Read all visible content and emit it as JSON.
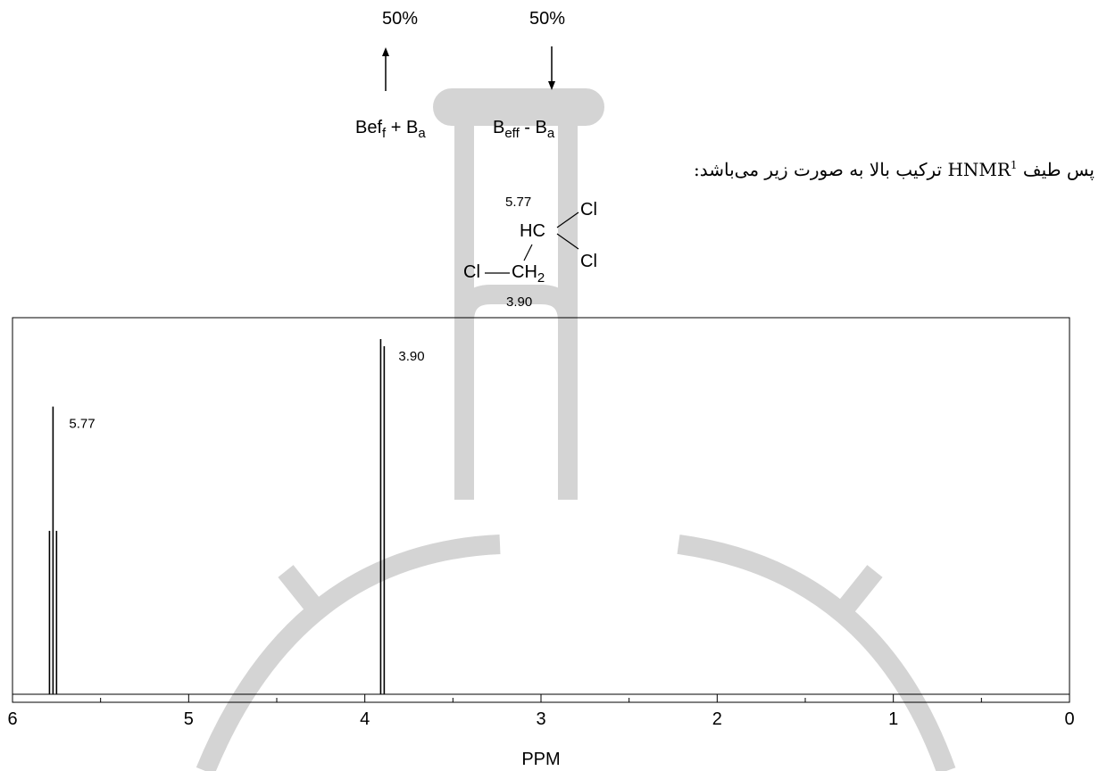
{
  "field_diagram": {
    "left": {
      "percent": "50%",
      "arrow": "up",
      "label_base": "Bef",
      "label_sub": "f",
      "label_mid": " + B",
      "label_sub2": "a"
    },
    "right": {
      "percent": "50%",
      "arrow": "down",
      "label_base": "B",
      "label_sub": "eff",
      "label_mid": " - B",
      "label_sub2": "a"
    }
  },
  "caption": {
    "before": "پس طیف ",
    "acronym": "HNMR",
    "sup": "1",
    "after": " ترکیب بالا به صورت زیر می‌باشد:"
  },
  "molecule": {
    "shift_ch": "5.77",
    "hc": "HC",
    "cl_top": "Cl",
    "cl_right": "Cl",
    "cl_left": "Cl",
    "ch2_base": "CH",
    "ch2_sub": "2",
    "shift_ch2": "3.90"
  },
  "colors": {
    "line": "#000000",
    "watermark": "#d0d0d0"
  },
  "chart_data": {
    "type": "line",
    "title": "",
    "xlabel": "PPM",
    "ylabel": "",
    "xlim": [
      6,
      0
    ],
    "x_reversed": true,
    "x_ticks": [
      6,
      5,
      4,
      3,
      2,
      1,
      0
    ],
    "x_tick_labels": [
      "6",
      "5",
      "4",
      "3",
      "2",
      "1",
      "0"
    ],
    "x_minor_step": 0.5,
    "grid": false,
    "peaks": [
      {
        "ppm": 5.79,
        "height": 0.46
      },
      {
        "ppm": 5.77,
        "height": 0.81
      },
      {
        "ppm": 5.75,
        "height": 0.46
      },
      {
        "ppm": 3.91,
        "height": 1.0
      },
      {
        "ppm": 3.89,
        "height": 0.98
      }
    ],
    "annotations": [
      {
        "text": "5.77",
        "ppm": 5.77
      },
      {
        "text": "3.90",
        "ppm": 3.9
      }
    ]
  }
}
